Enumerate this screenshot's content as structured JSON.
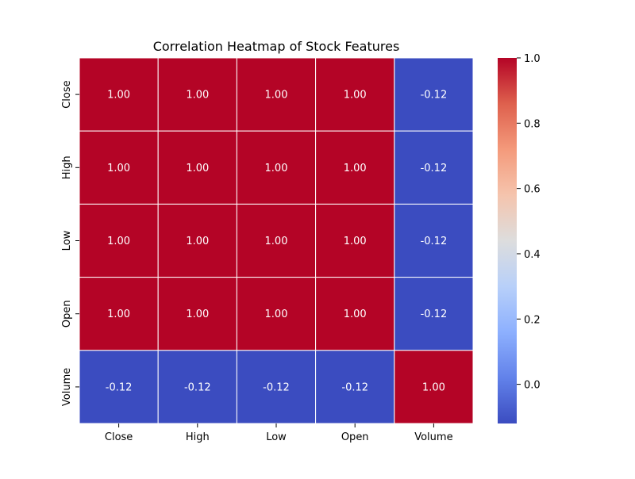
{
  "chart_data": {
    "type": "heatmap",
    "title": "Correlation Heatmap of Stock Features",
    "x_categories": [
      "Close",
      "High",
      "Low",
      "Open",
      "Volume"
    ],
    "y_categories": [
      "Close",
      "High",
      "Low",
      "Open",
      "Volume"
    ],
    "values": [
      [
        1.0,
        1.0,
        1.0,
        1.0,
        -0.12
      ],
      [
        1.0,
        1.0,
        1.0,
        1.0,
        -0.12
      ],
      [
        1.0,
        1.0,
        1.0,
        1.0,
        -0.12
      ],
      [
        1.0,
        1.0,
        1.0,
        1.0,
        -0.12
      ],
      [
        -0.12,
        -0.12,
        -0.12,
        -0.12,
        1.0
      ]
    ],
    "cell_labels": [
      [
        "1.00",
        "1.00",
        "1.00",
        "1.00",
        "-0.12"
      ],
      [
        "1.00",
        "1.00",
        "1.00",
        "1.00",
        "-0.12"
      ],
      [
        "1.00",
        "1.00",
        "1.00",
        "1.00",
        "-0.12"
      ],
      [
        "1.00",
        "1.00",
        "1.00",
        "1.00",
        "-0.12"
      ],
      [
        "-0.12",
        "-0.12",
        "-0.12",
        "-0.12",
        "1.00"
      ]
    ],
    "colormap": "coolwarm",
    "color_range": [
      -0.12,
      1.0
    ],
    "colorbar_ticks": [
      "1.0",
      "0.8",
      "0.6",
      "0.4",
      "0.2",
      "0.0"
    ],
    "colorbar_tick_values": [
      1.0,
      0.8,
      0.6,
      0.4,
      0.2,
      0.0
    ],
    "cell_border_color": "#ffffff",
    "annotation_text_color": "#ffffff"
  }
}
